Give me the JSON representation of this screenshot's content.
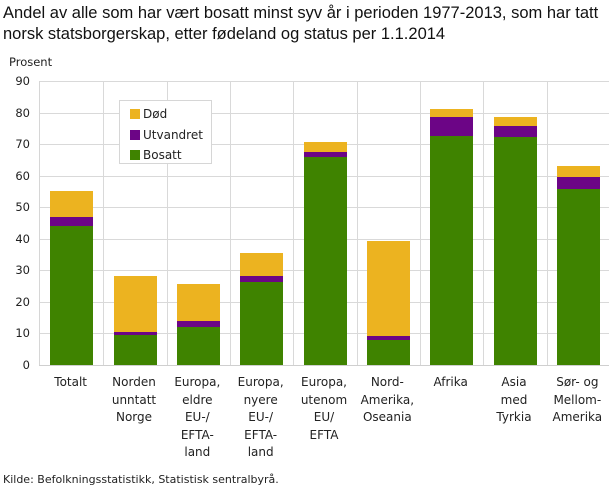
{
  "chart_data": {
    "type": "bar",
    "stacked": true,
    "title": "Andel av alle som har vært bosatt minst syv år i perioden 1977-2013, som har tatt norsk statsborgerskap, etter fødeland og status per 1.1.2014",
    "xlabel": "",
    "ylabel": "Prosent",
    "ylim": [
      0,
      90
    ],
    "yticks": [
      0,
      10,
      20,
      30,
      40,
      50,
      60,
      70,
      80,
      90
    ],
    "grid": true,
    "legend_position": "upper-left-inside",
    "categories": [
      "Totalt",
      "Norden unntatt Norge",
      "Europa, eldre EU-/ EFTA-land",
      "Europa, nyere EU-/ EFTA-land",
      "Europa, utenom EU/ EFTA",
      "Nord-Amerika, Oseania",
      "Afrika",
      "Asia med Tyrkia",
      "Sør- og Mellom-Amerika"
    ],
    "series": [
      {
        "name": "Bosatt",
        "color": "#3f8300",
        "values": [
          44.0,
          9.5,
          12.0,
          26.3,
          65.9,
          8.0,
          72.5,
          72.2,
          55.7
        ]
      },
      {
        "name": "Utvandret",
        "color": "#6c0586",
        "values": [
          2.9,
          0.9,
          1.9,
          2.0,
          1.5,
          1.3,
          6.0,
          3.4,
          3.8
        ]
      },
      {
        "name": "Død",
        "color": "#ecb320",
        "values": [
          8.2,
          17.8,
          11.7,
          7.1,
          3.2,
          29.9,
          2.5,
          2.9,
          3.5
        ]
      }
    ]
  },
  "header": {
    "title": "Andel av alle som har vært bosatt minst syv år i perioden 1977-2013, som har tatt norsk statsborgerskap, etter fødeland og status per 1.1.2014",
    "y_unit": "Prosent"
  },
  "axis": {
    "yticks": [
      "0",
      "10",
      "20",
      "30",
      "40",
      "50",
      "60",
      "70",
      "80",
      "90"
    ],
    "xlabels": [
      "Totalt",
      "Norden\nunntatt\nNorge",
      "Europa,\neldre\nEU-/\nEFTA-\nland",
      "Europa,\nnyere\nEU-/\nEFTA-\nland",
      "Europa,\nutenom\nEU/\nEFTA",
      "Nord-\nAmerika,\nOseania",
      "Afrika",
      "Asia\nmed\nTyrkia",
      "Sør- og\nMellom-\nAmerika"
    ]
  },
  "legend": {
    "items": [
      {
        "label": "Død",
        "color": "#ecb320"
      },
      {
        "label": "Utvandret",
        "color": "#6c0586"
      },
      {
        "label": "Bosatt",
        "color": "#3f8300"
      }
    ]
  },
  "footer": {
    "source": "Kilde: Befolkningsstatistikk, Statistisk sentralbyrå."
  }
}
